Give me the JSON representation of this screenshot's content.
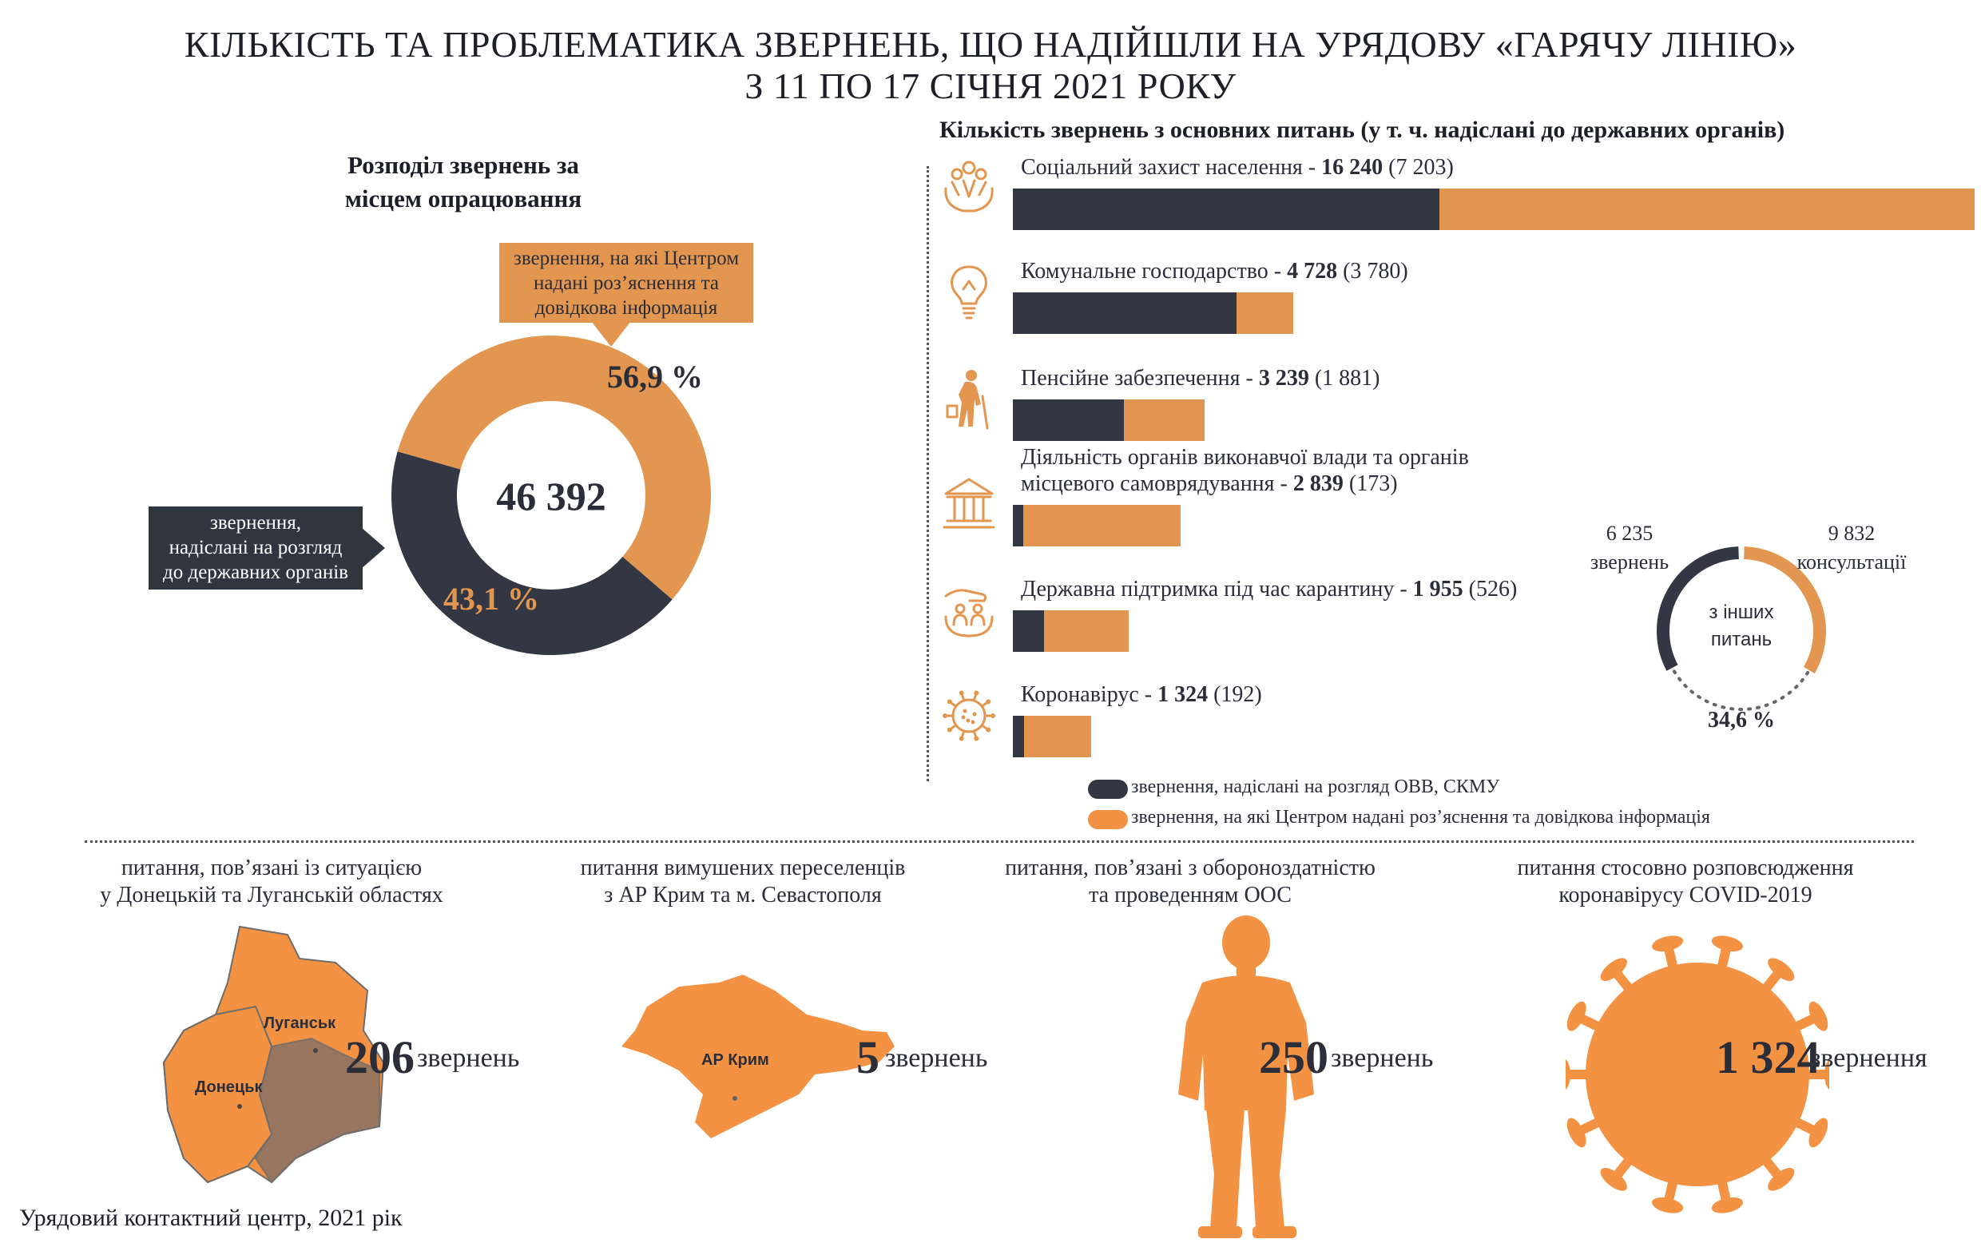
{
  "title": {
    "line1": "КІЛЬКІСТЬ ТА ПРОБЛЕМАТИКА ЗВЕРНЕНЬ, ЩО НАДІЙШЛИ НА УРЯДОВУ «ГАРЯЧУ ЛІНІЮ»",
    "line2": "З 11 ПО 17 СІЧНЯ 2021 РОКУ"
  },
  "colors": {
    "dark": "#323743",
    "orange": "#e2964f",
    "bright_orange": "#f39243",
    "map_brown": "#8c7263"
  },
  "donut_section": {
    "title_line1": "Розподіл звернень за",
    "title_line2": "місцем опрацювання",
    "center_value": "46 392",
    "orange_callout": [
      "звернення, на які Центром",
      "надані роз’яснення та",
      "довідкова інформація"
    ],
    "dark_callout": [
      "звернення,",
      "надіслані на розгляд",
      "до державних органів"
    ],
    "orange_pct_label": "56,9 %",
    "dark_pct_label": "43,1 %"
  },
  "bars_section": {
    "title": "Кількість звернень з основних питань (у т. ч. надіслані до державних органів)",
    "legend_dark": "звернення, надіслані на розгляд ОВВ, СКМУ",
    "legend_orange": "звернення, на які Центром надані роз’яснення та довідкова інформація"
  },
  "small_donut": {
    "left_value": "6 235",
    "left_label": "звернень",
    "right_value": "9 832",
    "right_label": "консультації",
    "center_line1": "з інших",
    "center_line2": "питань",
    "pct": "34,6 %"
  },
  "chart_data": [
    {
      "type": "pie",
      "labels": [
        "звернення, на які Центром надані роз’яснення та довідкова інформація",
        "звернення, надіслані на розгляд до державних органів"
      ],
      "values": [
        56.9,
        43.1
      ],
      "total": "46 392"
    },
    {
      "type": "bar",
      "title": "Кількість звернень з основних питань (у т. ч. надіслані до державних органів)",
      "categories": [
        "Соціальний захист населення",
        "Комунальне господарство",
        "Пенсійне забезпечення",
        "Діяльність органів виконавчої влади та органів місцевого самоврядування",
        "Державна підтримка під час карантину",
        "Коронавірус"
      ],
      "series": [
        {
          "name": "звернення, надіслані на розгляд ОВВ, СКМУ",
          "values": [
            7203,
            3780,
            1881,
            173,
            526,
            192
          ]
        },
        {
          "name": "звернення, на які Центром надані роз’яснення та довідкова інформація",
          "values": [
            9037,
            948,
            1358,
            2666,
            1429,
            1132
          ]
        }
      ],
      "totals": [
        16240,
        4728,
        3239,
        2839,
        1955,
        1324
      ],
      "total_labels": [
        "16 240",
        "4 728",
        "3 239",
        "2 839",
        "1 955",
        "1 324"
      ],
      "sent_labels": [
        "(7 203)",
        "(3 780)",
        "(1 881)",
        "(173)",
        "(526)",
        "(192)"
      ],
      "label_lines": [
        [
          "Соціальний захист населення - "
        ],
        [
          "Комунальне господарство - "
        ],
        [
          "Пенсійне забезпечення - "
        ],
        [
          "Діяльність органів виконавчої влади та органів",
          "місцевого самоврядування - "
        ],
        [
          "Державна підтримка під час карантину - "
        ],
        [
          "Коронавірус - "
        ]
      ],
      "icons": [
        "social-protection-icon",
        "lightbulb-icon",
        "elderly-person-icon",
        "government-building-icon",
        "hand-support-icon",
        "virus-icon"
      ],
      "stacked": true,
      "orientation": "horizontal"
    },
    {
      "type": "pie",
      "labels": [
        "звернень",
        "консультації"
      ],
      "values": [
        6235,
        9832
      ],
      "pct": "34,6 %"
    }
  ],
  "topics": [
    {
      "label": [
        "питання, пов’язані із ситуацією",
        "у Донецькій та Луганській областях"
      ],
      "value": "206",
      "unit": "звернень",
      "map_labels": [
        "Луганськ",
        "Донецьк"
      ],
      "icon": "donbas-map-icon"
    },
    {
      "label": [
        "питання вимушених переселенців",
        "з АР Крим та м. Севастополя"
      ],
      "value": "5",
      "unit": "звернень",
      "map_labels": [
        "АР Крим"
      ],
      "icon": "crimea-map-icon"
    },
    {
      "label": [
        "питання, пов’язані з обороноздатністю",
        "та проведенням ООС"
      ],
      "value": "250",
      "unit": "звернень",
      "icon": "soldier-icon"
    },
    {
      "label": [
        "питання стосовно розповсюдження",
        "коронавірусу COVID-2019"
      ],
      "value": "1 324",
      "unit": "звернення",
      "icon": "coronavirus-icon"
    }
  ],
  "footer": "Урядовий контактний центр, 2021 рік"
}
